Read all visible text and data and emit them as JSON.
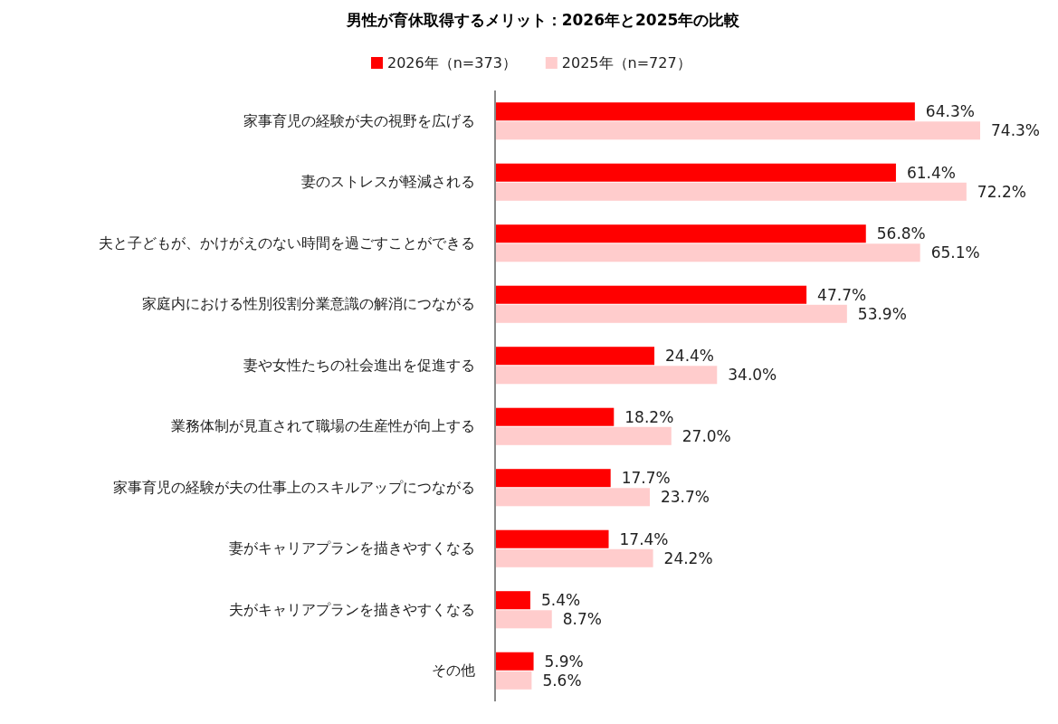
{
  "chart_data": {
    "type": "bar",
    "orientation": "horizontal",
    "title": "男性が育休取得するメリット：2026年と2025年の比較",
    "categories": [
      "家事育児の経験が夫の視野を広げる",
      "妻のストレスが軽減される",
      "夫と子どもが、かけがえのない時間を過ごすことができる",
      "家庭内における性別役割分業意識の解消につながる",
      "妻や女性たちの社会進出を促進する",
      "業務体制が見直されて職場の生産性が向上する",
      "家事育児の経験が夫の仕事上のスキルアップにつながる",
      "妻がキャリアプランを描きやすくなる",
      "夫がキャリアプランを描きやすくなる",
      "その他"
    ],
    "series": [
      {
        "name": "2026年（n=373）",
        "color": "#ff0000",
        "values": [
          64.3,
          61.4,
          56.8,
          47.7,
          24.4,
          18.2,
          17.7,
          17.4,
          5.4,
          5.9
        ],
        "value_labels": [
          "64.3%",
          "61.4%",
          "56.8%",
          "47.7%",
          "24.4%",
          "18.2%",
          "17.7%",
          "17.4%",
          "5.4%",
          "5.9%"
        ]
      },
      {
        "name": "2025年（n=727）",
        "color": "#ffcccc",
        "values": [
          74.3,
          72.2,
          65.1,
          53.9,
          34.0,
          27.0,
          23.7,
          24.2,
          8.7,
          5.6
        ],
        "value_labels": [
          "74.3%",
          "72.2%",
          "65.1%",
          "53.9%",
          "34.0%",
          "27.0%",
          "23.7%",
          "24.2%",
          "8.7%",
          "5.6%"
        ]
      }
    ],
    "legend": "top",
    "tick_labels": "y"
  }
}
